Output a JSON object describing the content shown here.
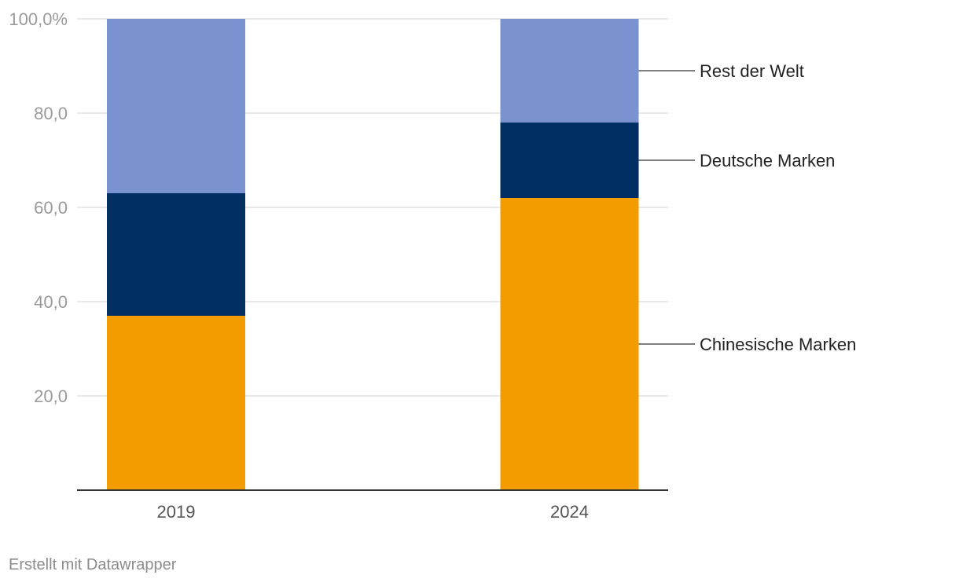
{
  "chart_data": {
    "type": "bar",
    "stacked": true,
    "categories": [
      "2019",
      "2024"
    ],
    "series": [
      {
        "name": "Chinesische Marken",
        "color": "#f39c00",
        "values": [
          37,
          62
        ]
      },
      {
        "name": "Deutsche Marken",
        "color": "#002f63",
        "values": [
          26,
          16
        ]
      },
      {
        "name": "Rest der Welt",
        "color": "#7a93d0",
        "values": [
          37,
          22
        ]
      }
    ],
    "ylim": [
      0,
      100
    ],
    "yticks": [
      20,
      40,
      60,
      80,
      100
    ],
    "ytick_labels": [
      "20,0",
      "40,0",
      "60,0",
      "80,0",
      "100,0%"
    ],
    "grid": true,
    "legend": "right, direct labels"
  },
  "footer": {
    "credit": "Erstellt mit Datawrapper"
  }
}
